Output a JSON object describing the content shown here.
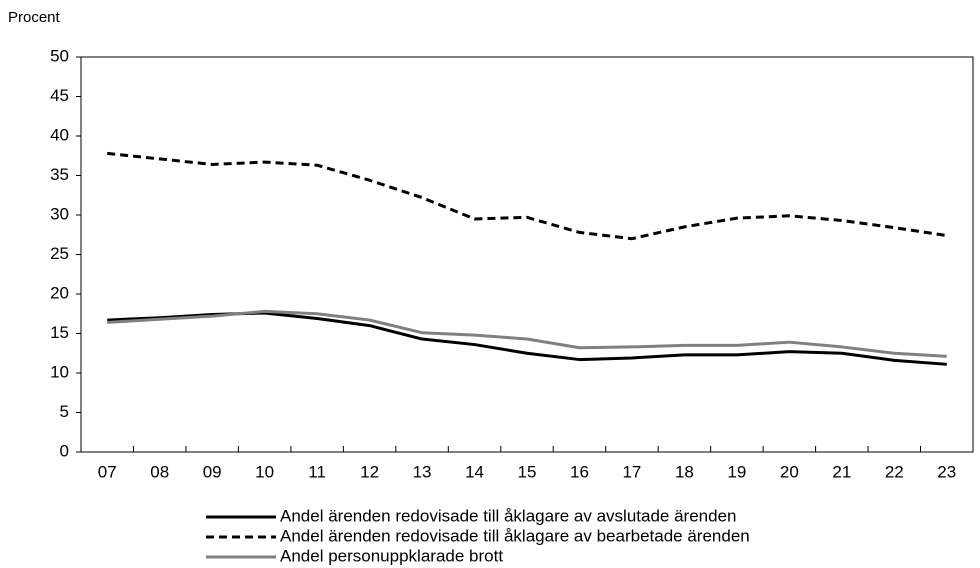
{
  "chart_data": {
    "type": "line",
    "ylabel": "Procent",
    "categories": [
      "07",
      "08",
      "09",
      "10",
      "11",
      "12",
      "13",
      "14",
      "15",
      "16",
      "17",
      "18",
      "19",
      "20",
      "21",
      "22",
      "23"
    ],
    "series": [
      {
        "name": "Andel ärenden redovisade till åklagare av avslutade ärenden",
        "color": "#000000",
        "line_style": "solid",
        "values": [
          16.7,
          17.0,
          17.4,
          17.6,
          16.9,
          16.0,
          14.3,
          13.6,
          12.5,
          11.7,
          11.9,
          12.3,
          12.3,
          12.7,
          12.5,
          11.6,
          11.1
        ]
      },
      {
        "name": "Andel ärenden redovisade till åklagare av bearbetade ärenden",
        "color": "#000000",
        "line_style": "dashed",
        "values": [
          37.8,
          37.1,
          36.4,
          36.7,
          36.3,
          34.4,
          32.2,
          29.5,
          29.7,
          27.8,
          27.0,
          28.5,
          29.6,
          29.9,
          29.3,
          28.4,
          27.4
        ]
      },
      {
        "name": "Andel personuppklarade brott",
        "color": "#808080",
        "line_style": "solid",
        "values": [
          16.4,
          16.8,
          17.2,
          17.8,
          17.5,
          16.7,
          15.1,
          14.8,
          14.3,
          13.2,
          13.3,
          13.5,
          13.5,
          13.9,
          13.3,
          12.5,
          12.1
        ]
      }
    ],
    "ylim": [
      0,
      50
    ],
    "yticks": [
      0,
      5,
      10,
      15,
      20,
      25,
      30,
      35,
      40,
      45,
      50
    ]
  }
}
